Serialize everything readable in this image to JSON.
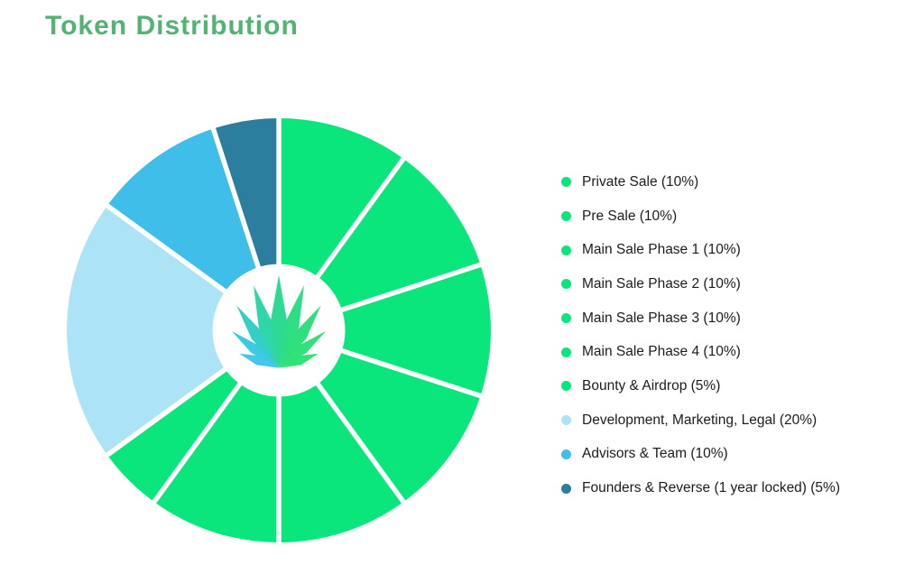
{
  "page": {
    "title": "Token Distribution"
  },
  "colors": {
    "title": "#52b472",
    "background": "#ffffff",
    "slice_separator": "#ffffff"
  },
  "icons": {
    "center_icon": "hemp-leaf-icon"
  },
  "chart_data": {
    "type": "pie",
    "title": "Token Distribution",
    "donut": true,
    "hole_ratio": 0.31,
    "start_angle_deg": -90,
    "direction": "clockwise",
    "legend_position": "right",
    "grid": false,
    "slices": [
      {
        "id": "private-sale",
        "label": "Private Sale",
        "value": 10,
        "color": "#0ae67c"
      },
      {
        "id": "pre-sale",
        "label": "Pre Sale",
        "value": 10,
        "color": "#0ae67c"
      },
      {
        "id": "main-sale-phase-1",
        "label": "Main Sale Phase 1",
        "value": 10,
        "color": "#0ae67c"
      },
      {
        "id": "main-sale-phase-2",
        "label": "Main Sale Phase 2",
        "value": 10,
        "color": "#0ae67c"
      },
      {
        "id": "main-sale-phase-3",
        "label": "Main Sale Phase 3",
        "value": 10,
        "color": "#0ae67c"
      },
      {
        "id": "main-sale-phase-4",
        "label": "Main Sale Phase 4",
        "value": 10,
        "color": "#0ae67c"
      },
      {
        "id": "bounty-airdrop",
        "label": "Bounty & Airdrop",
        "value": 5,
        "color": "#0ae67c"
      },
      {
        "id": "development-marketing-legal",
        "label": "Development, Marketing, Legal",
        "value": 20,
        "color": "#ade3f7"
      },
      {
        "id": "advisors-team",
        "label": "Advisors & Team",
        "value": 10,
        "color": "#3ebee8"
      },
      {
        "id": "founders-reverse",
        "label": "Founders & Reverse (1 year locked)",
        "value": 5,
        "color": "#2b7e9e"
      }
    ]
  }
}
